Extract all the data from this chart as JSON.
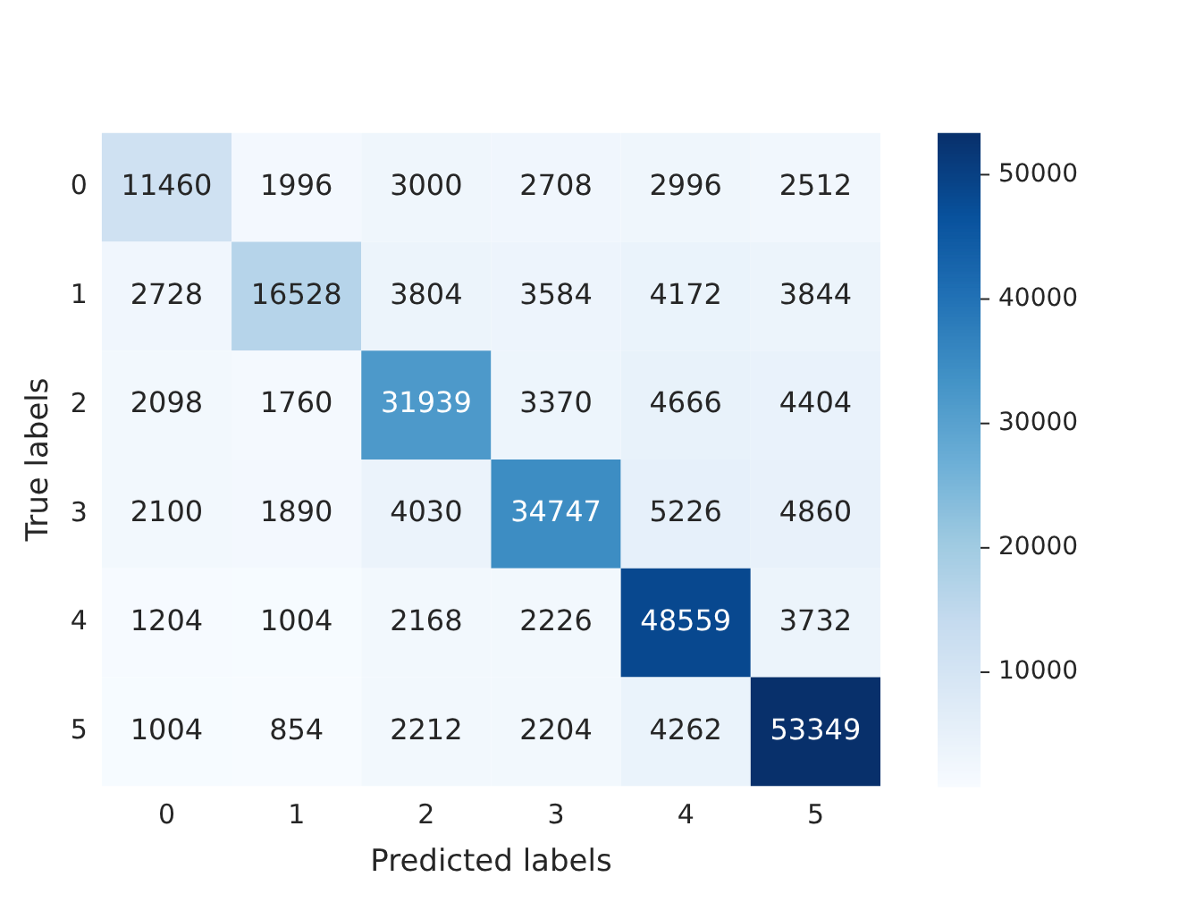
{
  "chart_data": {
    "type": "heatmap",
    "xlabel": "Predicted labels",
    "ylabel": "True labels",
    "categories": [
      "0",
      "1",
      "2",
      "3",
      "4",
      "5"
    ],
    "y_categories": [
      "0",
      "1",
      "2",
      "3",
      "4",
      "5"
    ],
    "cells": [
      [
        11460,
        1996,
        3000,
        2708,
        2996,
        2512
      ],
      [
        2728,
        16528,
        3804,
        3584,
        4172,
        3844
      ],
      [
        2098,
        1760,
        31939,
        3370,
        4666,
        4404
      ],
      [
        2100,
        1890,
        4030,
        34747,
        5226,
        4860
      ],
      [
        1204,
        1004,
        2168,
        2226,
        48559,
        3732
      ],
      [
        1004,
        854,
        2212,
        2204,
        4262,
        53349
      ]
    ],
    "data_labels": true,
    "clim": [
      854,
      53349
    ],
    "cticks": [
      10000,
      20000,
      30000,
      40000,
      50000
    ]
  }
}
